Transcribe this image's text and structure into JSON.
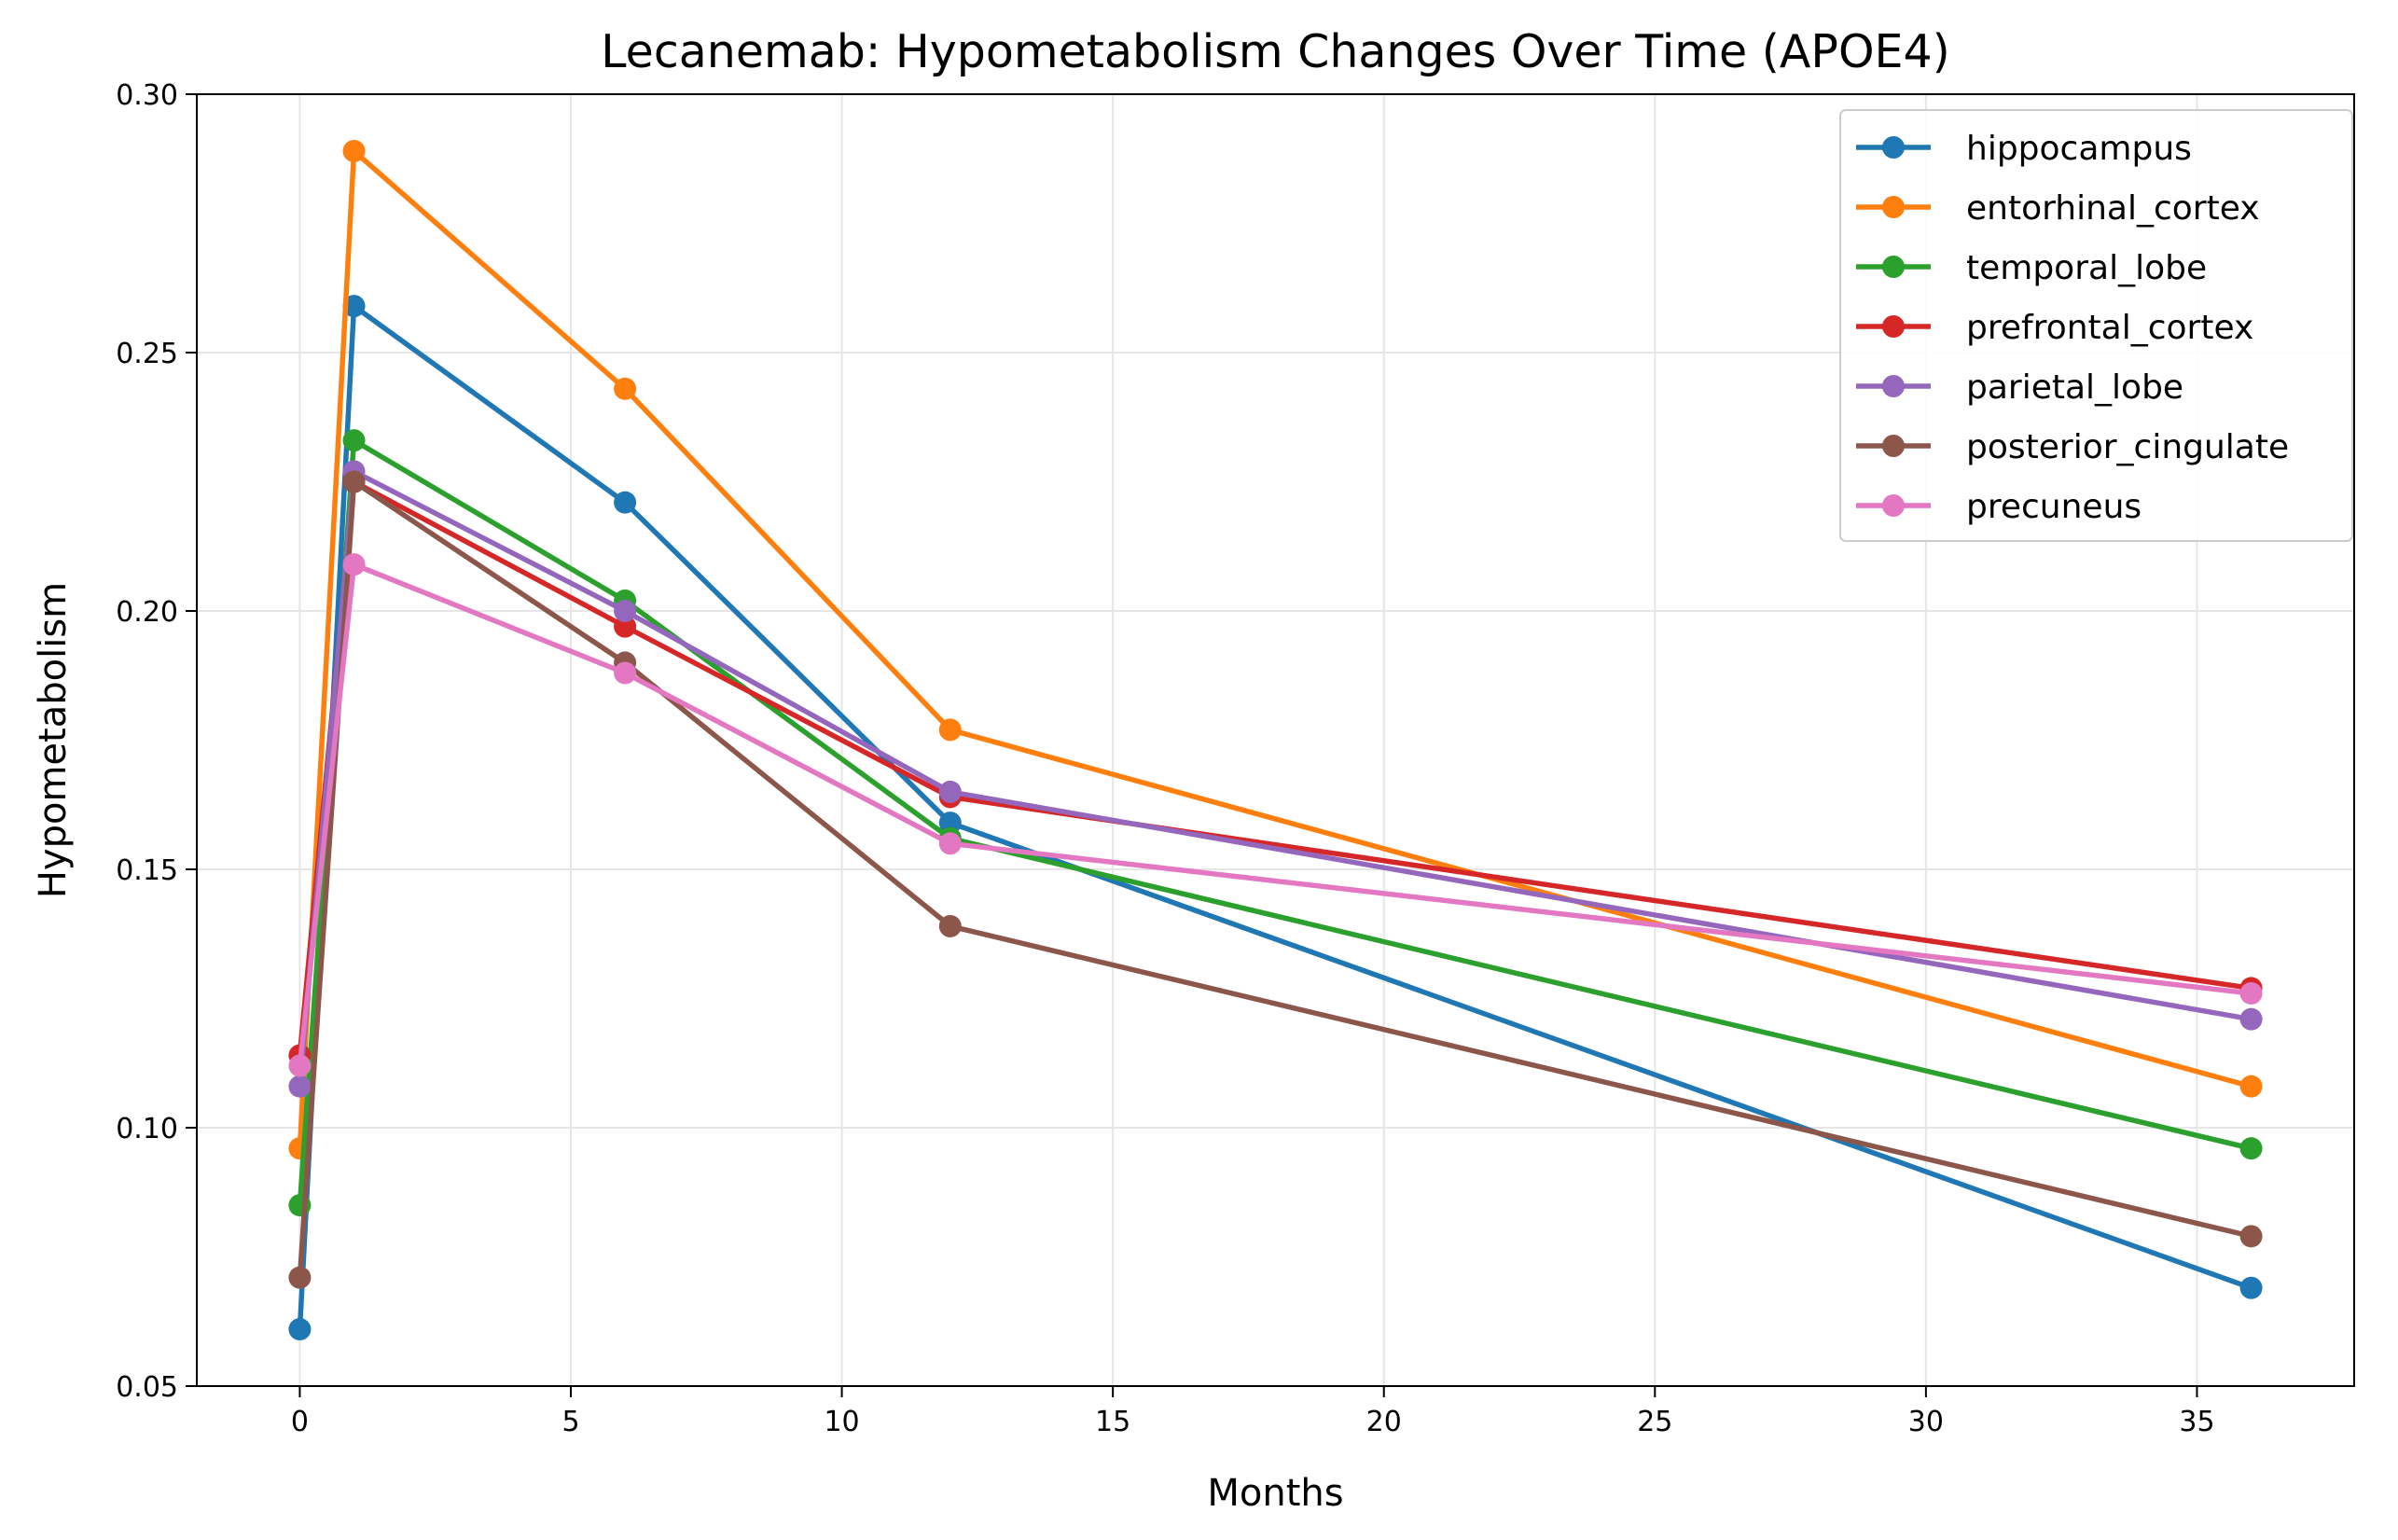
{
  "chart_data": {
    "type": "line",
    "title": "Lecanemab: Hypometabolism Changes Over Time (APOE4)",
    "xlabel": "Months",
    "ylabel": "Hypometabolism",
    "xlim": [
      -1.9,
      37.9
    ],
    "ylim": [
      0.05,
      0.3
    ],
    "xticks": [
      0,
      5,
      10,
      15,
      20,
      25,
      30,
      35
    ],
    "yticks": [
      0.05,
      0.1,
      0.15,
      0.2,
      0.25,
      0.3
    ],
    "ytick_labels": [
      "0.05",
      "0.10",
      "0.15",
      "0.20",
      "0.25",
      "0.30"
    ],
    "grid": true,
    "legend_position": "top-right",
    "x": [
      0,
      1,
      6,
      12,
      36
    ],
    "series": [
      {
        "name": "hippocampus",
        "color": "#1f77b4",
        "values": [
          0.061,
          0.259,
          0.221,
          0.159,
          0.069
        ]
      },
      {
        "name": "entorhinal_cortex",
        "color": "#ff7f0e",
        "values": [
          0.096,
          0.289,
          0.243,
          0.177,
          0.108
        ]
      },
      {
        "name": "temporal_lobe",
        "color": "#2ca02c",
        "values": [
          0.085,
          0.233,
          0.202,
          0.156,
          0.096
        ]
      },
      {
        "name": "prefrontal_cortex",
        "color": "#d62728",
        "values": [
          0.114,
          0.225,
          0.197,
          0.164,
          0.127
        ]
      },
      {
        "name": "parietal_lobe",
        "color": "#9467bd",
        "values": [
          0.108,
          0.227,
          0.2,
          0.165,
          0.121
        ]
      },
      {
        "name": "posterior_cingulate",
        "color": "#8c564b",
        "values": [
          0.071,
          0.225,
          0.19,
          0.139,
          0.079
        ]
      },
      {
        "name": "precuneus",
        "color": "#e377c2",
        "values": [
          0.112,
          0.209,
          0.188,
          0.155,
          0.126
        ]
      }
    ]
  }
}
